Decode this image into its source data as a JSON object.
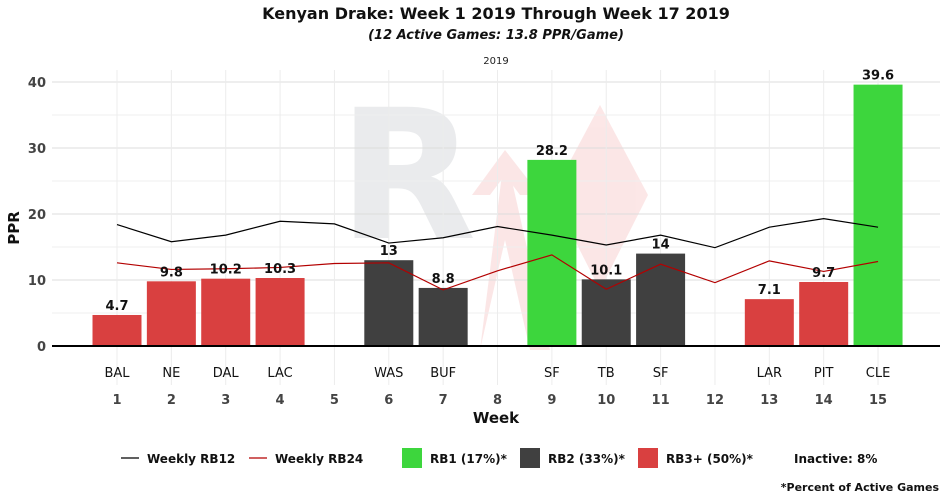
{
  "chart_data": {
    "type": "bar",
    "title": "Kenyan Drake: Week 1 2019 Through Week 17 2019",
    "subtitle": "(12 Active Games: 13.8 PPR/Game)",
    "facet_label": "2019",
    "xlabel": "Week",
    "ylabel": "PPR",
    "ylim": [
      -3,
      42
    ],
    "yticks": [
      0,
      10,
      20,
      30,
      40
    ],
    "weeks": [
      1,
      2,
      3,
      4,
      5,
      6,
      7,
      8,
      9,
      10,
      11,
      12,
      13,
      14,
      15
    ],
    "bars": [
      {
        "week": 1,
        "team": "BAL",
        "value": 4.7,
        "label": "4.7",
        "tier": "rb3"
      },
      {
        "week": 2,
        "team": "NE",
        "value": 9.8,
        "label": "9.8",
        "tier": "rb3"
      },
      {
        "week": 3,
        "team": "DAL",
        "value": 10.2,
        "label": "10.2",
        "tier": "rb3"
      },
      {
        "week": 4,
        "team": "LAC",
        "value": 10.3,
        "label": "10.3",
        "tier": "rb3"
      },
      {
        "week": 6,
        "team": "WAS",
        "value": 13,
        "label": "13",
        "tier": "rb2"
      },
      {
        "week": 7,
        "team": "BUF",
        "value": 8.8,
        "label": "8.8",
        "tier": "rb2"
      },
      {
        "week": 9,
        "team": "SF",
        "value": 28.2,
        "label": "28.2",
        "tier": "rb1"
      },
      {
        "week": 10,
        "team": "TB",
        "value": 10.1,
        "label": "10.1",
        "tier": "rb2"
      },
      {
        "week": 11,
        "team": "SF",
        "value": 14,
        "label": "14",
        "tier": "rb2"
      },
      {
        "week": 13,
        "team": "LAR",
        "value": 7.1,
        "label": "7.1",
        "tier": "rb3"
      },
      {
        "week": 14,
        "team": "PIT",
        "value": 9.7,
        "label": "9.7",
        "tier": "rb3"
      },
      {
        "week": 15,
        "team": "CLE",
        "value": 39.6,
        "label": "39.6",
        "tier": "rb1"
      }
    ],
    "series": [
      {
        "name": "Weekly RB12",
        "color": "#000000",
        "x": [
          1,
          2,
          3,
          4,
          5,
          6,
          7,
          8,
          9,
          10,
          11,
          12,
          13,
          14,
          15
        ],
        "values": [
          18.4,
          15.8,
          16.8,
          18.9,
          18.5,
          15.6,
          16.4,
          18.1,
          16.8,
          15.3,
          16.8,
          14.9,
          18.0,
          19.3,
          18.0
        ]
      },
      {
        "name": "Weekly RB24",
        "color": "#b30000",
        "x": [
          1,
          2,
          3,
          4,
          5,
          6,
          7,
          8,
          9,
          10,
          11,
          12,
          13,
          14,
          15
        ],
        "values": [
          12.6,
          11.6,
          11.7,
          11.9,
          12.5,
          12.6,
          8.5,
          11.4,
          13.8,
          8.6,
          12.4,
          9.6,
          12.9,
          11.3,
          12.8
        ]
      }
    ],
    "tiers": [
      {
        "key": "rb1",
        "label": "RB1 (17%)*",
        "color": "#3dd63d"
      },
      {
        "key": "rb2",
        "label": "RB2 (33%)*",
        "color": "#404040"
      },
      {
        "key": "rb3",
        "label": "RB3+ (50%)*",
        "color": "#d94040"
      }
    ],
    "inactive_label": "Inactive: 8%",
    "footnote": "*Percent of Active Games",
    "grid": true,
    "legend_position": "bottom"
  }
}
